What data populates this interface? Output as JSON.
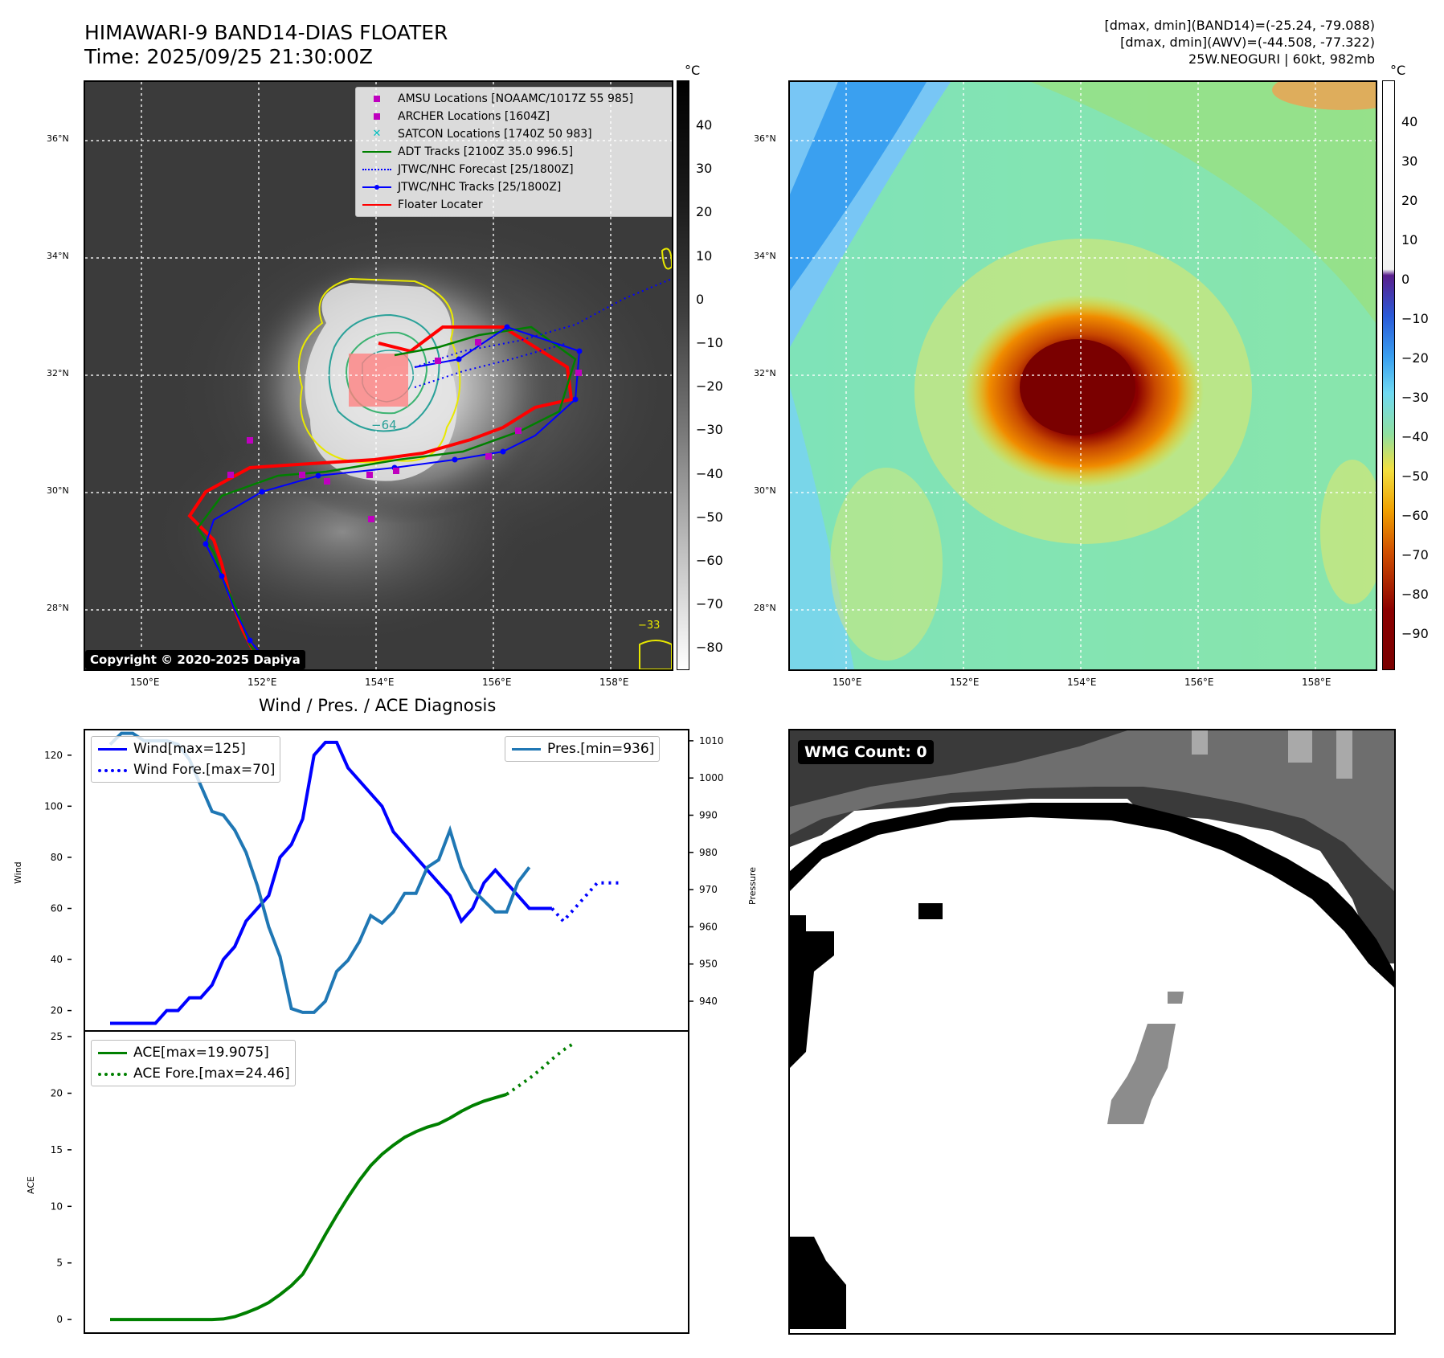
{
  "header": {
    "title_line1": "HIMAWARI-9 BAND14-DIAS FLOATER",
    "title_line2": "Time: 2025/09/25 21:30:00Z",
    "info_line1": "[dmax, dmin](BAND14)=(-25.24, -79.088)",
    "info_line2": "[dmax, dmin](AWV)=(-44.508, -77.322)",
    "info_line3": "25W.NEOGURI | 60kt, 982mb"
  },
  "map_ir": {
    "copyright": "Copyright © 2020-2025 Dapiya",
    "colorbar_unit": "°C",
    "colorbar_ticks": [
      "40",
      "30",
      "20",
      "10",
      "0",
      "−10",
      "−20",
      "−30",
      "−40",
      "−50",
      "−60",
      "−70",
      "−80"
    ],
    "lat_labels": [
      "36°N",
      "34°N",
      "32°N",
      "30°N",
      "28°N"
    ],
    "lon_labels": [
      "150°E",
      "152°E",
      "154°E",
      "156°E",
      "158°E"
    ],
    "contour_labels": [
      "−64",
      "−33"
    ],
    "legend": [
      {
        "label": "AMSU Locations [NOAAMC/1017Z 55 985]",
        "marker": "square",
        "color": "#bf00bf"
      },
      {
        "label": "ARCHER Locations [1604Z]",
        "marker": "square",
        "color": "#bf00bf"
      },
      {
        "label": "SATCON Locations [1740Z 50 983]",
        "marker": "x",
        "color": "#00bfbf"
      },
      {
        "label": "ADT Tracks [2100Z 35.0 996.5]",
        "marker": "line",
        "color": "#008000"
      },
      {
        "label": "JTWC/NHC Forecast [25/1800Z]",
        "marker": "dotted",
        "color": "#0000ff"
      },
      {
        "label": "JTWC/NHC Tracks [25/1800Z]",
        "marker": "line-dot",
        "color": "#0000ff"
      },
      {
        "label": "Floater Locater",
        "marker": "line",
        "color": "#ff0000"
      }
    ]
  },
  "map_wv": {
    "colorbar_unit": "°C",
    "colorbar_ticks": [
      "40",
      "30",
      "20",
      "10",
      "0",
      "−10",
      "−20",
      "−30",
      "−40",
      "−50",
      "−60",
      "−70",
      "−80",
      "−90"
    ],
    "lat_labels": [
      "36°N",
      "34°N",
      "32°N",
      "30°N",
      "28°N"
    ],
    "lon_labels": [
      "150°E",
      "152°E",
      "154°E",
      "156°E",
      "158°E"
    ]
  },
  "diag": {
    "title": "Wind / Pres. / ACE Diagnosis",
    "wind_ylabel": "Wind",
    "pres_ylabel": "Pressure",
    "ace_ylabel": "ACE",
    "wind_legend": [
      "Wind[max=125]",
      "Wind Fore.[max=70]"
    ],
    "pres_legend": [
      "Pres.[min=936]"
    ],
    "ace_legend": [
      "ACE[max=19.9075]",
      "ACE Fore.[max=24.46]"
    ],
    "wind_ticks": [
      "120",
      "100",
      "80",
      "60",
      "40",
      "20"
    ],
    "pres_ticks": [
      "1010",
      "1000",
      "990",
      "980",
      "970",
      "960",
      "950",
      "940"
    ],
    "ace_ticks": [
      "25",
      "20",
      "15",
      "10",
      "5",
      "0"
    ]
  },
  "wmg": {
    "label": "WMG Count: 0"
  },
  "chart_data": [
    {
      "type": "line",
      "title": "Wind / Pres. / ACE Diagnosis",
      "ylabel": "Wind",
      "ylim": [
        12,
        130
      ],
      "series": [
        {
          "name": "Wind[max=125]",
          "color": "#0000ff",
          "style": "solid",
          "y": [
            15,
            15,
            15,
            15,
            15,
            20,
            20,
            25,
            25,
            30,
            40,
            45,
            55,
            60,
            65,
            80,
            85,
            95,
            120,
            125,
            125,
            115,
            110,
            105,
            100,
            90,
            85,
            80,
            75,
            70,
            65,
            55,
            60,
            70,
            75,
            70,
            65,
            60,
            60,
            60
          ]
        },
        {
          "name": "Wind Fore.[max=70]",
          "color": "#0000ff",
          "style": "dotted",
          "y": [
            60,
            55,
            60,
            65,
            70,
            70,
            70
          ]
        }
      ]
    },
    {
      "type": "line",
      "ylabel": "Pressure",
      "ylim": [
        932,
        1013
      ],
      "series": [
        {
          "name": "Pres.[min=936]",
          "color": "#1f77b4",
          "style": "solid",
          "y": [
            1009,
            1012,
            1012,
            1010,
            1010,
            1010,
            1009,
            1005,
            998,
            991,
            990,
            986,
            980,
            971,
            960,
            952,
            938,
            937,
            937,
            940,
            948,
            951,
            956,
            963,
            961,
            964,
            969,
            969,
            976,
            978,
            986,
            976,
            970,
            967,
            964,
            964,
            972,
            976
          ]
        }
      ]
    },
    {
      "type": "line",
      "ylabel": "ACE",
      "ylim": [
        -1.2,
        25.5
      ],
      "series": [
        {
          "name": "ACE[max=19.9075]",
          "color": "#008000",
          "style": "solid",
          "y": [
            0,
            0,
            0,
            0,
            0,
            0,
            0,
            0,
            0,
            0,
            0.05,
            0.25,
            0.6,
            1.0,
            1.5,
            2.2,
            3.0,
            4.0,
            5.7,
            7.5,
            9.2,
            10.8,
            12.3,
            13.6,
            14.6,
            15.4,
            16.1,
            16.6,
            17.0,
            17.3,
            17.8,
            18.4,
            18.9,
            19.3,
            19.6,
            19.9
          ]
        },
        {
          "name": "ACE Fore.[max=24.46]",
          "color": "#008000",
          "style": "dotted",
          "y": [
            19.9,
            20.6,
            21.3,
            22.1,
            23.0,
            23.8,
            24.46
          ]
        }
      ]
    }
  ]
}
